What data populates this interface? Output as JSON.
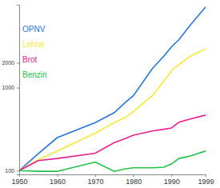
{
  "chart_data": {
    "type": "line",
    "x": [
      1950,
      1955,
      1960,
      1970,
      1975,
      1978,
      1980,
      1985,
      1988,
      1990,
      1992,
      1995,
      1999
    ],
    "series": [
      {
        "name": "OPNV",
        "color": "#2a74d6",
        "values": [
          100,
          160,
          250,
          380,
          500,
          670,
          800,
          1700,
          2400,
          3100,
          3800,
          5700,
          9400
        ]
      },
      {
        "name": "Lohne",
        "color": "#f5e83a",
        "values": [
          100,
          135,
          172,
          283,
          380,
          440,
          516,
          800,
          1200,
          1600,
          1900,
          2400,
          2950
        ]
      },
      {
        "name": "Brot",
        "color": "#e8218c",
        "values": [
          100,
          132,
          140,
          162,
          218,
          245,
          267,
          300,
          315,
          326,
          383,
          420,
          467
        ]
      },
      {
        "name": "Benzin",
        "color": "#22c04a",
        "values": [
          100,
          98,
          98,
          127,
          98,
          105,
          108,
          108,
          110,
          120,
          140,
          150,
          172
        ]
      }
    ],
    "xlim": [
      1950,
      1999
    ],
    "xticks": [
      1950,
      1960,
      1970,
      1980,
      1990,
      1999
    ],
    "ylim": [
      90,
      10000
    ],
    "yticks": [
      100,
      1000,
      2000
    ],
    "log": "y",
    "legend": "upper left",
    "grid": false
  }
}
